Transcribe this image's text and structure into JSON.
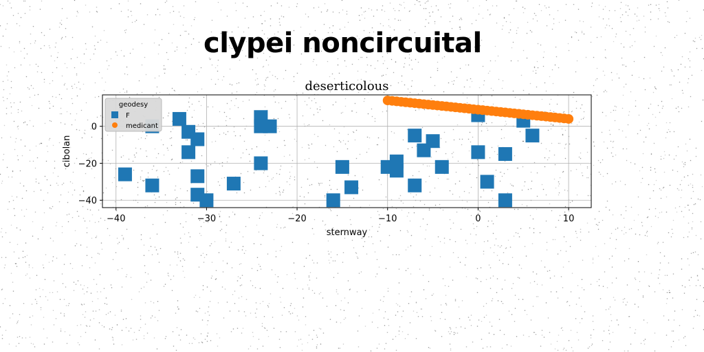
{
  "figure": {
    "suptitle": "clypei noncircuital"
  },
  "chart_data": {
    "type": "scatter",
    "title": "deserticolous",
    "xlabel": "sternway",
    "ylabel": "cibolan",
    "xlim": [
      -41.5,
      12.5
    ],
    "ylim": [
      -44,
      17
    ],
    "xticks": [
      -40,
      -30,
      -20,
      -10,
      0,
      10
    ],
    "yticks": [
      -40,
      -20,
      0
    ],
    "grid": true,
    "legend": {
      "title": "geodesy",
      "placement": "upper-left"
    },
    "series": [
      {
        "name": "F",
        "marker": "square",
        "color": "#1f77b4",
        "x": [
          -39,
          -36,
          -36,
          -33,
          -32,
          -32,
          -31,
          -31,
          -31,
          -30,
          -27,
          -24,
          -24,
          -23,
          -24,
          -16,
          -15,
          -14,
          -10,
          -9,
          -9,
          -7,
          -7,
          -6,
          -5,
          -4,
          0,
          0,
          1,
          3,
          3,
          5,
          6
        ],
        "y": [
          -26,
          0,
          -32,
          4,
          -3,
          -14,
          -7,
          -27,
          -37,
          -40,
          -31,
          5,
          0,
          0,
          -20,
          -40,
          -22,
          -33,
          -22,
          -19,
          -24,
          -5,
          -32,
          -13,
          -8,
          -22,
          6,
          -14,
          -30,
          -15,
          -40,
          3,
          -5
        ]
      },
      {
        "name": "medicant",
        "marker": "circle",
        "color": "#ff7f0e",
        "x": [
          -10,
          -9.5,
          -9,
          -8.5,
          -8,
          -7.5,
          -7,
          -6.5,
          -6,
          -5.5,
          -5,
          -4.5,
          -4,
          -3.5,
          -3,
          -2.5,
          -2,
          -1.5,
          -1,
          -0.5,
          0,
          0.5,
          1,
          1.5,
          2,
          2.5,
          3,
          3.5,
          4,
          4.5,
          5,
          5.5,
          6,
          6.5,
          7,
          7.5,
          8,
          8.5,
          9,
          9.5,
          10
        ],
        "y": [
          14,
          13.75,
          13.5,
          13.25,
          13,
          12.75,
          12.5,
          12.25,
          12,
          11.75,
          11.5,
          11.25,
          11,
          10.75,
          10.5,
          10.25,
          10,
          9.75,
          9.5,
          9.25,
          9,
          8.75,
          8.5,
          8.25,
          8,
          7.75,
          7.5,
          7.25,
          7,
          6.75,
          6.5,
          6.25,
          6,
          5.75,
          5.5,
          5.25,
          5,
          4.75,
          4.5,
          4.25,
          4
        ]
      }
    ]
  }
}
